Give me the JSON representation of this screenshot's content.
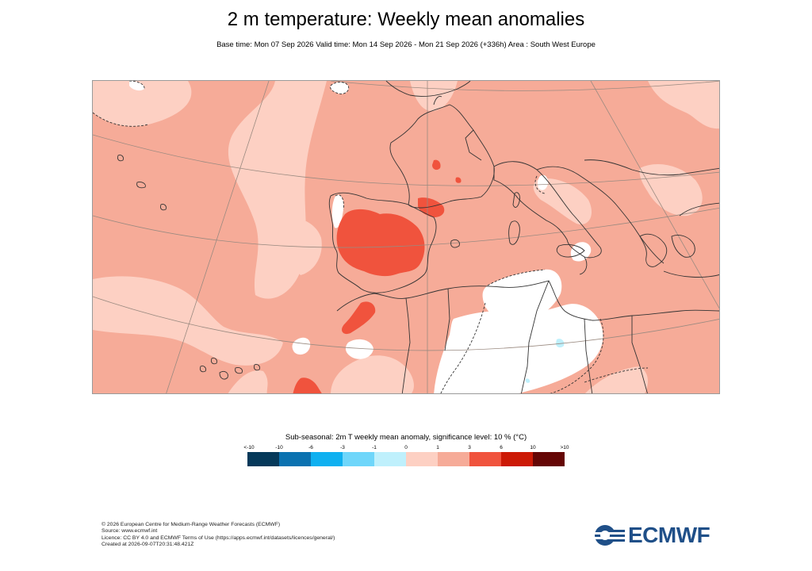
{
  "title": "2 m temperature: Weekly mean anomalies",
  "subtitle": "Base time: Mon 07 Sep 2026 Valid time: Mon 14 Sep 2026 - Mon 21 Sep 2026 (+336h) Area : South West Europe",
  "map": {
    "area": "South West Europe",
    "colors": {
      "background_anomaly_0_1": "#fdd0c3",
      "anomaly_1_3": "#f6ab98",
      "anomaly_3_6": "#f0533d",
      "anomaly_6_10": "#cc1a06",
      "not_significant": "#ffffff",
      "land_lines": "#333333",
      "graticule": "#9a8a80"
    }
  },
  "legend": {
    "title": "Sub-seasonal: 2m T weekly mean anomaly, significance level: 10 % (°C)",
    "ticks": [
      "<-10",
      "-10",
      "-6",
      "-3",
      "-1",
      "0",
      "1",
      "3",
      "6",
      "10",
      ">10"
    ],
    "colors": [
      "#05395a",
      "#0b72b0",
      "#0fb0f0",
      "#6fd6fa",
      "#bff0fc",
      "#fdd0c3",
      "#f6ab98",
      "#f0533d",
      "#cc1a06",
      "#650605"
    ]
  },
  "footer": {
    "line1": "© 2026 European Centre for Medium-Range Weather Forecasts (ECMWF)",
    "line2": "Source: www.ecmwf.int",
    "line3": "Licence: CC BY 4.0 and ECMWF Terms of Use (https://apps.ecmwf.int/datasets/licences/general/)",
    "line4": "Created at 2026-09-07T20:31:48.421Z"
  },
  "logo": {
    "text": "ECMWF",
    "color": "#1f4f88"
  }
}
